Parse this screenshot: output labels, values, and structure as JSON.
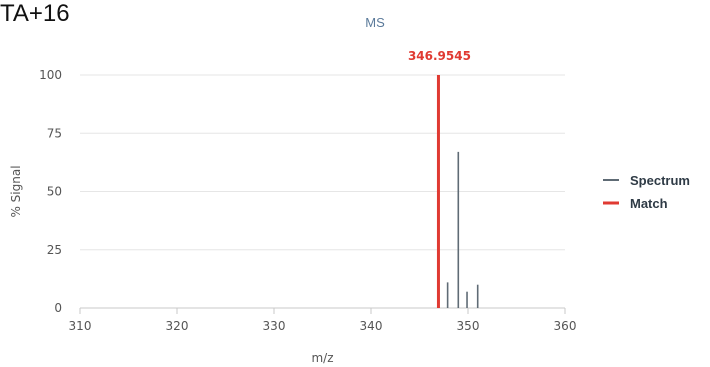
{
  "header": {
    "title": "TA+16"
  },
  "chart_data": {
    "type": "bar",
    "title": "MS",
    "xlabel": "m/z",
    "ylabel": "% Signal",
    "xlim": [
      310,
      360
    ],
    "ylim": [
      0,
      100
    ],
    "xticks": [
      "310",
      "320",
      "330",
      "340",
      "350",
      "360"
    ],
    "yticks": [
      "0",
      "25",
      "50",
      "75",
      "100"
    ],
    "grid": true,
    "legend_position": "right",
    "series": [
      {
        "name": "Spectrum",
        "color": "#5f6b75",
        "x": [
          347.9,
          349.0,
          349.9,
          351.0
        ],
        "values": [
          11,
          67,
          7,
          10
        ]
      },
      {
        "name": "Match",
        "color": "#e03a32",
        "x": [
          346.9545
        ],
        "values": [
          100
        ]
      }
    ],
    "annotations": [
      {
        "text": "346.9545",
        "x": 346.9545,
        "y": 100
      }
    ]
  }
}
